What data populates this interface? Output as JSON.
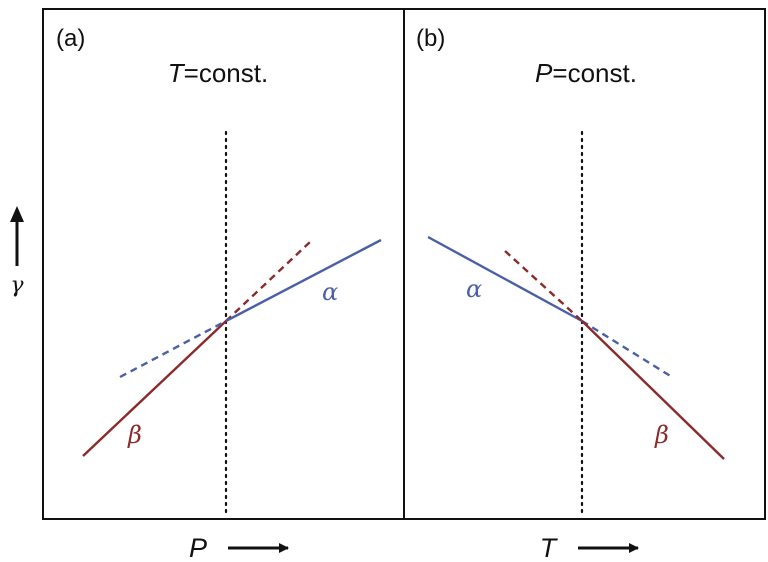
{
  "y_axis": {
    "label": "γ"
  },
  "colors": {
    "alpha": "#4a5fa8",
    "beta": "#8b2a2a",
    "frame": "#111111"
  },
  "panels": [
    {
      "label": "(a)",
      "condition": {
        "variable": "T",
        "text": "=const."
      },
      "x_axis": {
        "label": "P"
      },
      "curves": {
        "alpha_label": "α",
        "beta_label": "β"
      }
    },
    {
      "label": "(b)",
      "condition": {
        "variable": "P",
        "text": "=const."
      },
      "x_axis": {
        "label": "T"
      },
      "curves": {
        "alpha_label": "α",
        "beta_label": "β"
      }
    }
  ]
}
